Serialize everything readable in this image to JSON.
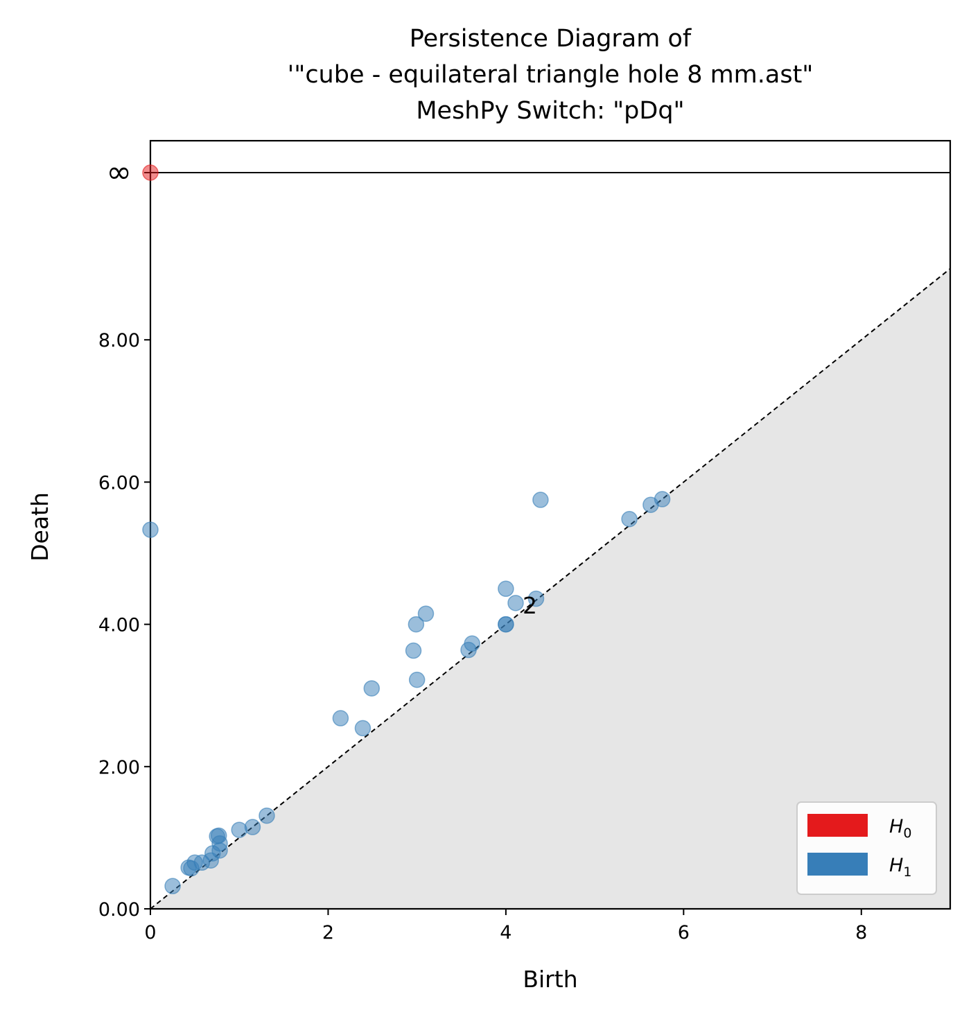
{
  "chart_data": {
    "type": "scatter",
    "title_lines": [
      "Persistence Diagram of",
      "'\"cube - equilateral triangle hole 8 mm.ast\"",
      "MeshPy Switch: \"pDq\""
    ],
    "xlabel": "Birth",
    "ylabel": "Death",
    "xlim": [
      0,
      9
    ],
    "ylim": [
      0,
      10.5
    ],
    "x_ticks": [
      {
        "value": 0,
        "label": "0"
      },
      {
        "value": 2,
        "label": "2"
      },
      {
        "value": 4,
        "label": "4"
      },
      {
        "value": 6,
        "label": "6"
      },
      {
        "value": 8,
        "label": "8"
      }
    ],
    "y_ticks": [
      {
        "value": 0,
        "label": "0.00"
      },
      {
        "value": 2,
        "label": "2.00"
      },
      {
        "value": 4,
        "label": "4.00"
      },
      {
        "value": 6,
        "label": "6.00"
      },
      {
        "value": 8,
        "label": "8.00"
      }
    ],
    "infinity": {
      "value": 10.05,
      "label": "∞"
    },
    "diagonal": true,
    "shade_below_diagonal": true,
    "grid": false,
    "legend_position": "lower-right",
    "series": [
      {
        "name": "H",
        "subscript": "0",
        "color": "#e41a1c",
        "points": [
          {
            "x": 0.0,
            "y": "inf"
          }
        ]
      },
      {
        "name": "H",
        "subscript": "1",
        "color": "#377eb8",
        "points": [
          {
            "x": 0.0,
            "y": 5.33
          },
          {
            "x": 0.25,
            "y": 0.32
          },
          {
            "x": 0.43,
            "y": 0.58
          },
          {
            "x": 0.46,
            "y": 0.57
          },
          {
            "x": 0.5,
            "y": 0.65
          },
          {
            "x": 0.58,
            "y": 0.65
          },
          {
            "x": 0.68,
            "y": 0.68
          },
          {
            "x": 0.7,
            "y": 0.78
          },
          {
            "x": 0.75,
            "y": 1.02
          },
          {
            "x": 0.77,
            "y": 1.03
          },
          {
            "x": 0.78,
            "y": 0.92
          },
          {
            "x": 0.78,
            "y": 0.82
          },
          {
            "x": 1.0,
            "y": 1.11
          },
          {
            "x": 1.15,
            "y": 1.15
          },
          {
            "x": 1.31,
            "y": 1.31
          },
          {
            "x": 2.14,
            "y": 2.68
          },
          {
            "x": 2.39,
            "y": 2.54
          },
          {
            "x": 2.49,
            "y": 3.1
          },
          {
            "x": 2.96,
            "y": 3.63
          },
          {
            "x": 2.99,
            "y": 4.0
          },
          {
            "x": 3.0,
            "y": 3.22
          },
          {
            "x": 3.1,
            "y": 4.15
          },
          {
            "x": 3.58,
            "y": 3.64
          },
          {
            "x": 3.62,
            "y": 3.73
          },
          {
            "x": 4.0,
            "y": 4.5
          },
          {
            "x": 4.0,
            "y": 4.0
          },
          {
            "x": 4.0,
            "y": 4.0
          },
          {
            "x": 4.11,
            "y": 4.3
          },
          {
            "x": 4.34,
            "y": 4.36
          },
          {
            "x": 4.39,
            "y": 5.75
          },
          {
            "x": 5.39,
            "y": 5.48
          },
          {
            "x": 5.63,
            "y": 5.68
          },
          {
            "x": 5.76,
            "y": 5.76
          }
        ]
      }
    ],
    "annotations": [
      {
        "text": "2",
        "x": 4.27,
        "y": 4.25
      }
    ]
  }
}
